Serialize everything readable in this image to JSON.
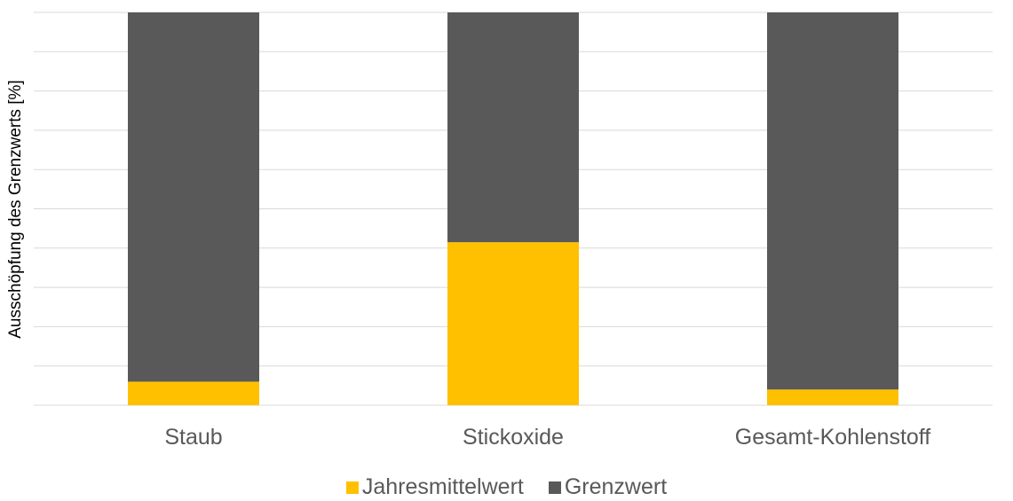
{
  "chart_data": {
    "type": "bar",
    "stacked": true,
    "title": "",
    "xlabel": "",
    "ylabel": "Ausschöpfung des Grenzwerts [%]",
    "ylim": [
      0,
      100
    ],
    "grid": true,
    "legend_position": "bottom",
    "categories": [
      "Staub",
      "Stickoxide",
      "Gesamt-Kohlenstoff"
    ],
    "series": [
      {
        "name": "Jahresmittelwert",
        "color": "#FFC000",
        "values": [
          6,
          41.5,
          4
        ]
      },
      {
        "name": "Grenzwert",
        "color": "#595959",
        "values": [
          94,
          58.5,
          96
        ]
      }
    ]
  },
  "colors": {
    "gridline": "#D9D9D9",
    "axis_text": "#595959",
    "background": "#FFFFFF"
  }
}
